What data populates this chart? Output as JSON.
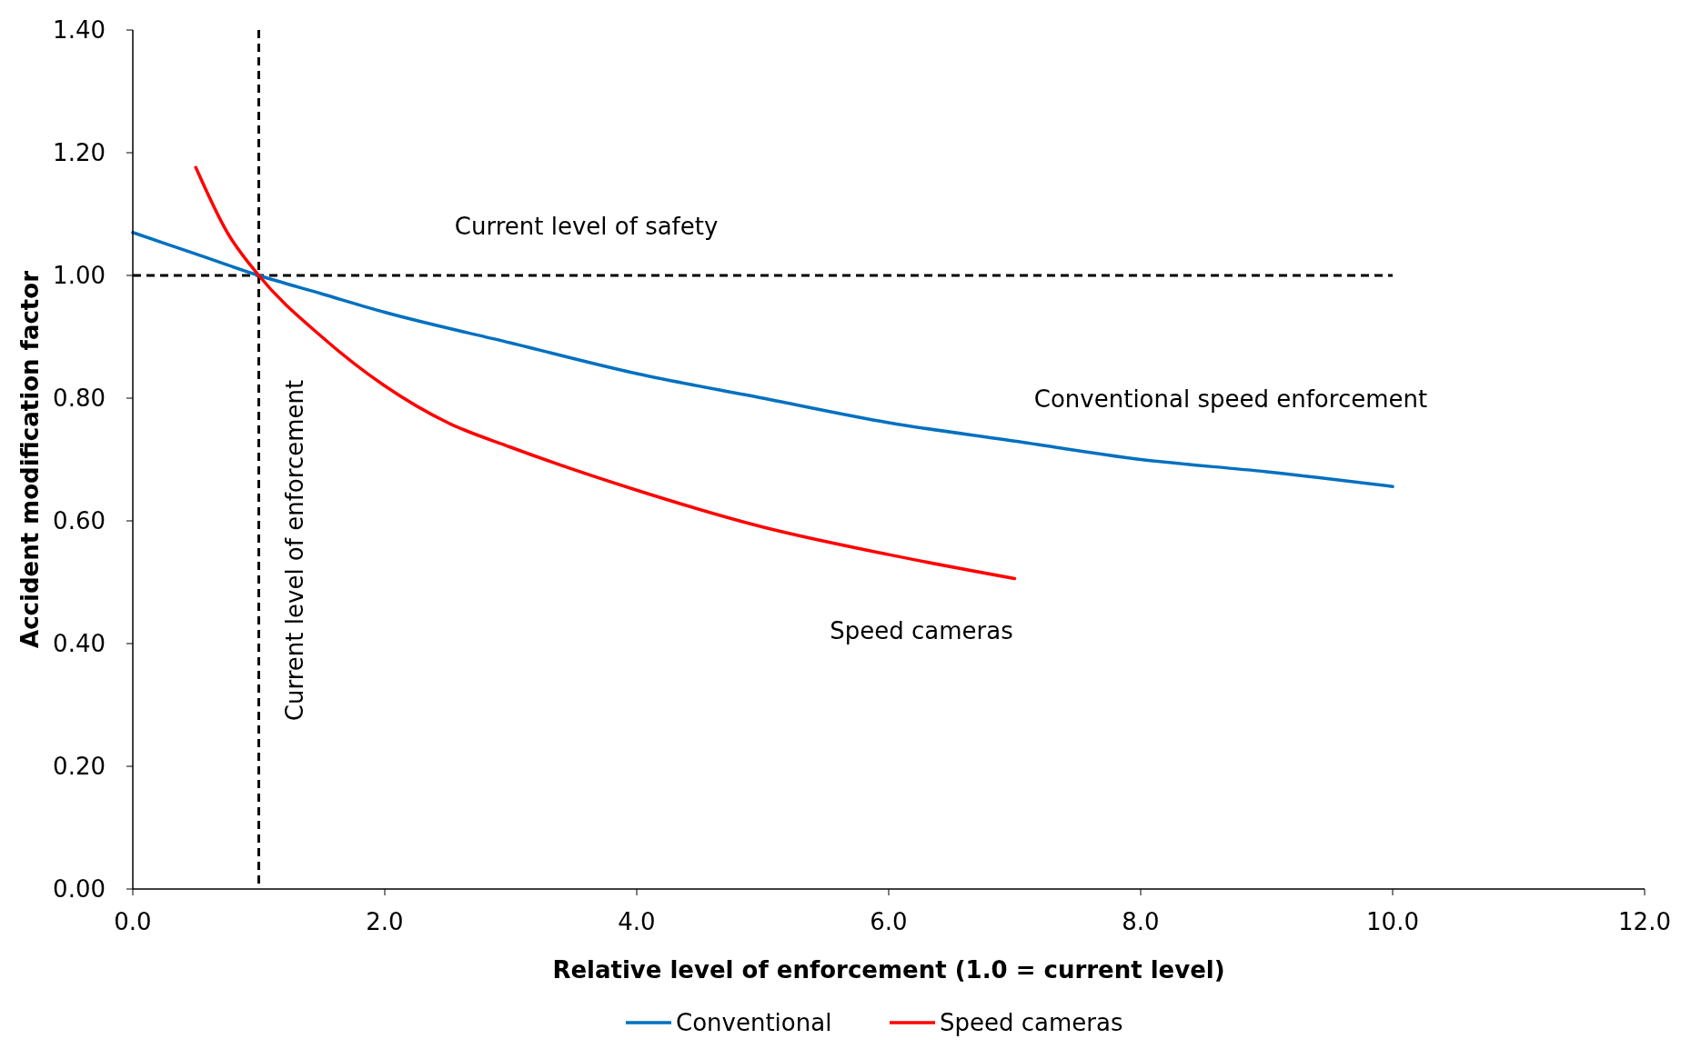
{
  "chart_data": {
    "type": "line",
    "xlabel": "Relative level of enforcement (1.0 = current level)",
    "ylabel": "Accident modification factor",
    "xlim": [
      0,
      12
    ],
    "xticks": [
      {
        "value": 0,
        "label": "0.0"
      },
      {
        "value": 2,
        "label": "2.0"
      },
      {
        "value": 4,
        "label": "4.0"
      },
      {
        "value": 6,
        "label": "6.0"
      },
      {
        "value": 8,
        "label": "8.0"
      },
      {
        "value": 10,
        "label": "10.0"
      },
      {
        "value": 12,
        "label": "12.0"
      }
    ],
    "ylim": [
      0,
      1.4
    ],
    "yticks": [
      {
        "value": 0,
        "label": "0.00"
      },
      {
        "value": 0.2,
        "label": "0.20"
      },
      {
        "value": 0.4,
        "label": "0.40"
      },
      {
        "value": 0.6,
        "label": "0.60"
      },
      {
        "value": 0.8,
        "label": "0.80"
      },
      {
        "value": 1,
        "label": "1.00"
      },
      {
        "value": 1.2,
        "label": "1.20"
      },
      {
        "value": 1.4,
        "label": "1.40"
      }
    ],
    "grid": false,
    "legend": "bottom",
    "line_style": "solid",
    "series": [
      {
        "name": "Conventional",
        "color": "#0070c0",
        "x": [
          0,
          0.5,
          1,
          1.5,
          2,
          3,
          4,
          5,
          6,
          7,
          8,
          9,
          10
        ],
        "values": [
          1.07,
          1.035,
          1.0,
          0.97,
          0.94,
          0.89,
          0.84,
          0.8,
          0.76,
          0.73,
          0.7,
          0.68,
          0.656
        ]
      },
      {
        "name": "Speed cameras",
        "color": "#ff0000",
        "x": [
          0.5,
          0.75,
          1,
          1.5,
          2,
          2.5,
          3,
          4,
          5,
          6,
          7
        ],
        "values": [
          1.176,
          1.07,
          1.0,
          0.9,
          0.82,
          0.76,
          0.72,
          0.65,
          0.59,
          0.545,
          0.506
        ]
      }
    ],
    "ref_lines": [
      {
        "axis": "y",
        "value": 1,
        "label": "Current level of safety",
        "color": "#000000",
        "line_style": "dashed"
      },
      {
        "axis": "x",
        "value": 1,
        "label": "Current level of enforcement",
        "color": "#000000",
        "line_style": "dashed"
      }
    ],
    "annotations": [
      "Conventional speed enforcement",
      "Speed cameras"
    ]
  }
}
